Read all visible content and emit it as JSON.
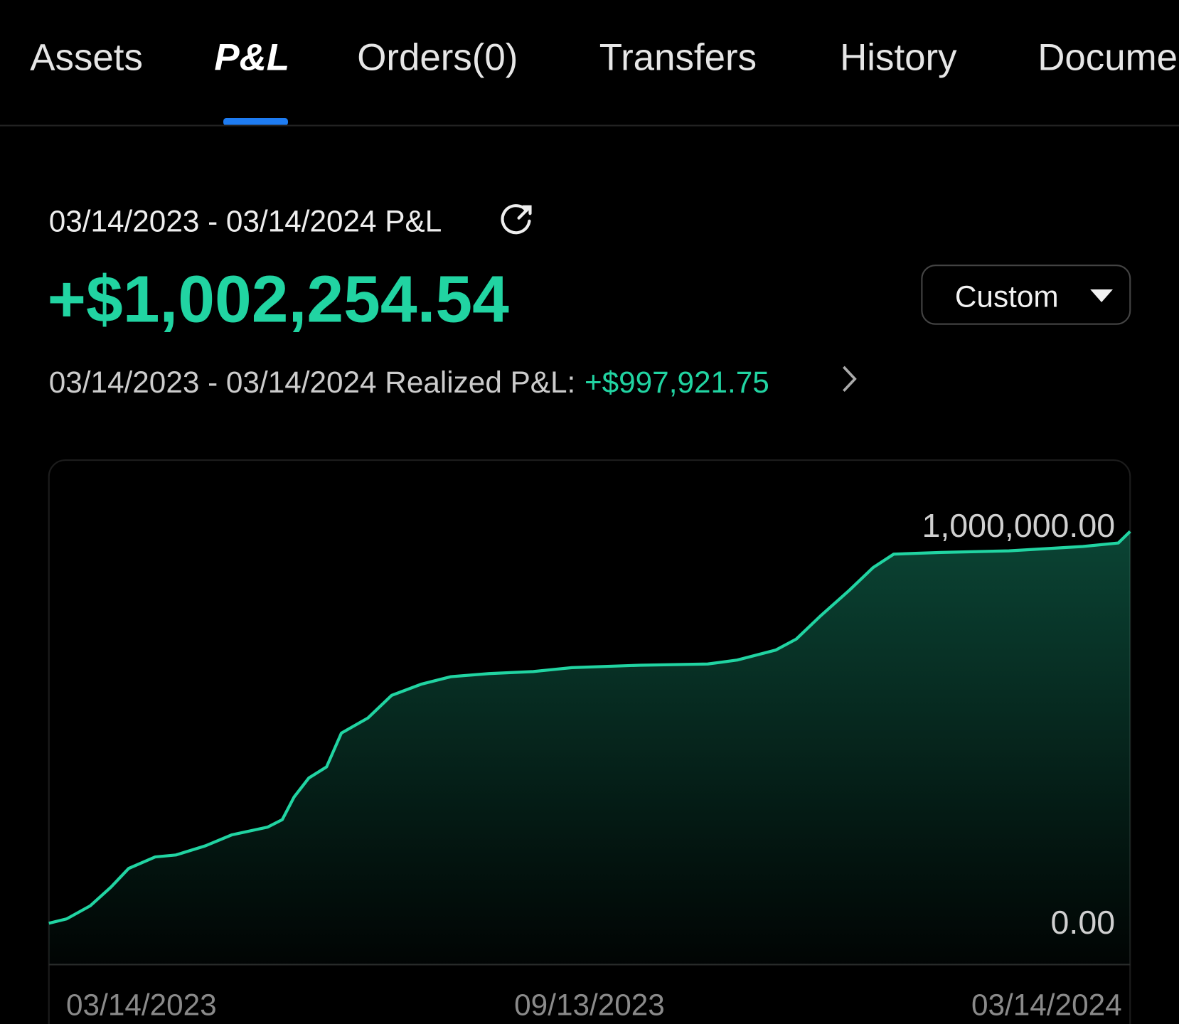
{
  "tabs": [
    "Assets",
    "P&L",
    "Orders(0)",
    "Transfers",
    "History",
    "Docume"
  ],
  "header": {
    "period_label": "03/14/2023 - 03/14/2024 P&L",
    "total_pnl": "+$1,002,254.54",
    "range_button": "Custom",
    "realized_label": "03/14/2023 - 03/14/2024 Realized P&L:",
    "realized_value": "+$997,921.75"
  },
  "chart_data": {
    "type": "area",
    "color": "#21d4a2",
    "x": [
      "2023-03-14",
      "2023-03-20",
      "2023-03-28",
      "2023-04-04",
      "2023-04-10",
      "2023-04-19",
      "2023-04-26",
      "2023-05-06",
      "2023-05-15",
      "2023-05-27",
      "2023-06-01",
      "2023-06-05",
      "2023-06-10",
      "2023-06-16",
      "2023-06-21",
      "2023-06-30",
      "2023-07-08",
      "2023-07-18",
      "2023-07-28",
      "2023-08-10",
      "2023-08-25",
      "2023-09-07",
      "2023-09-30",
      "2023-10-23",
      "2023-11-02",
      "2023-11-15",
      "2023-11-22",
      "2023-11-30",
      "2023-12-10",
      "2023-12-18",
      "2023-12-25",
      "2024-01-10",
      "2024-02-02",
      "2024-02-27",
      "2024-03-10",
      "2024-03-14"
    ],
    "values": [
      0,
      11000,
      44000,
      91000,
      138000,
      167000,
      172000,
      195000,
      223000,
      242000,
      261000,
      318000,
      366000,
      394000,
      479000,
      517000,
      574000,
      602000,
      621000,
      629000,
      634000,
      644000,
      650000,
      653000,
      663000,
      688000,
      716000,
      773000,
      839000,
      896000,
      930000,
      934000,
      938000,
      949000,
      958000,
      987000
    ],
    "xlim": [
      "2023-03-14",
      "2024-03-14"
    ],
    "xticks": [
      {
        "value": "2023-03-14",
        "label": "03/14/2023"
      },
      {
        "value": "2023-09-13",
        "label": "09/13/2023"
      },
      {
        "value": "2024-03-14",
        "label": "03/14/2024"
      }
    ],
    "ylim": [
      0,
      1000000
    ],
    "yticks": [
      {
        "value": 0,
        "label": "0.00"
      },
      {
        "value": 1000000,
        "label": "1,000,000.00"
      }
    ]
  }
}
